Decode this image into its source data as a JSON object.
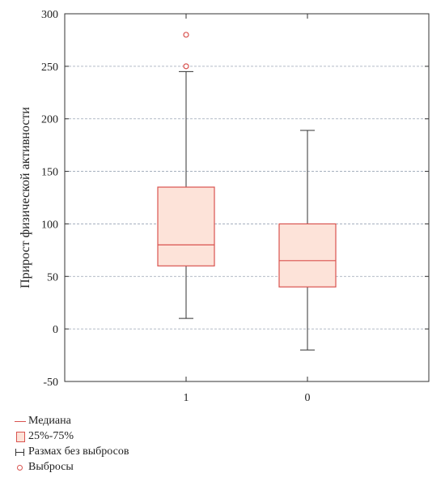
{
  "chart_data": {
    "type": "boxplot",
    "ylabel": "Прирост физической активности",
    "ylim": [
      -50,
      300
    ],
    "yticks": [
      -50,
      0,
      50,
      100,
      150,
      200,
      250,
      300
    ],
    "grid": "horizontal-dashed",
    "categories": [
      "1",
      "0"
    ],
    "boxes": [
      {
        "category": "1",
        "whisker_low": 10,
        "q1": 60,
        "median": 80,
        "q3": 135,
        "whisker_high": 245,
        "outliers": [
          250,
          280
        ]
      },
      {
        "category": "0",
        "whisker_low": -20,
        "q1": 40,
        "median": 65,
        "q3": 100,
        "whisker_high": 189,
        "outliers": []
      }
    ],
    "legend": {
      "placement": "bottom-left",
      "items": [
        {
          "symbol": "median-line",
          "label": "Медиана"
        },
        {
          "symbol": "box",
          "label": "25%-75%"
        },
        {
          "symbol": "whisker",
          "label": "Размах без выбросов"
        },
        {
          "symbol": "outlier",
          "label": "Выбросы"
        }
      ]
    },
    "colors": {
      "box_fill": "#fde3d9",
      "box_edge": "#d9534f",
      "median": "#d9534f",
      "whisker": "#333333",
      "outlier": "#d9534f",
      "grid": "#9aa5b5"
    }
  }
}
